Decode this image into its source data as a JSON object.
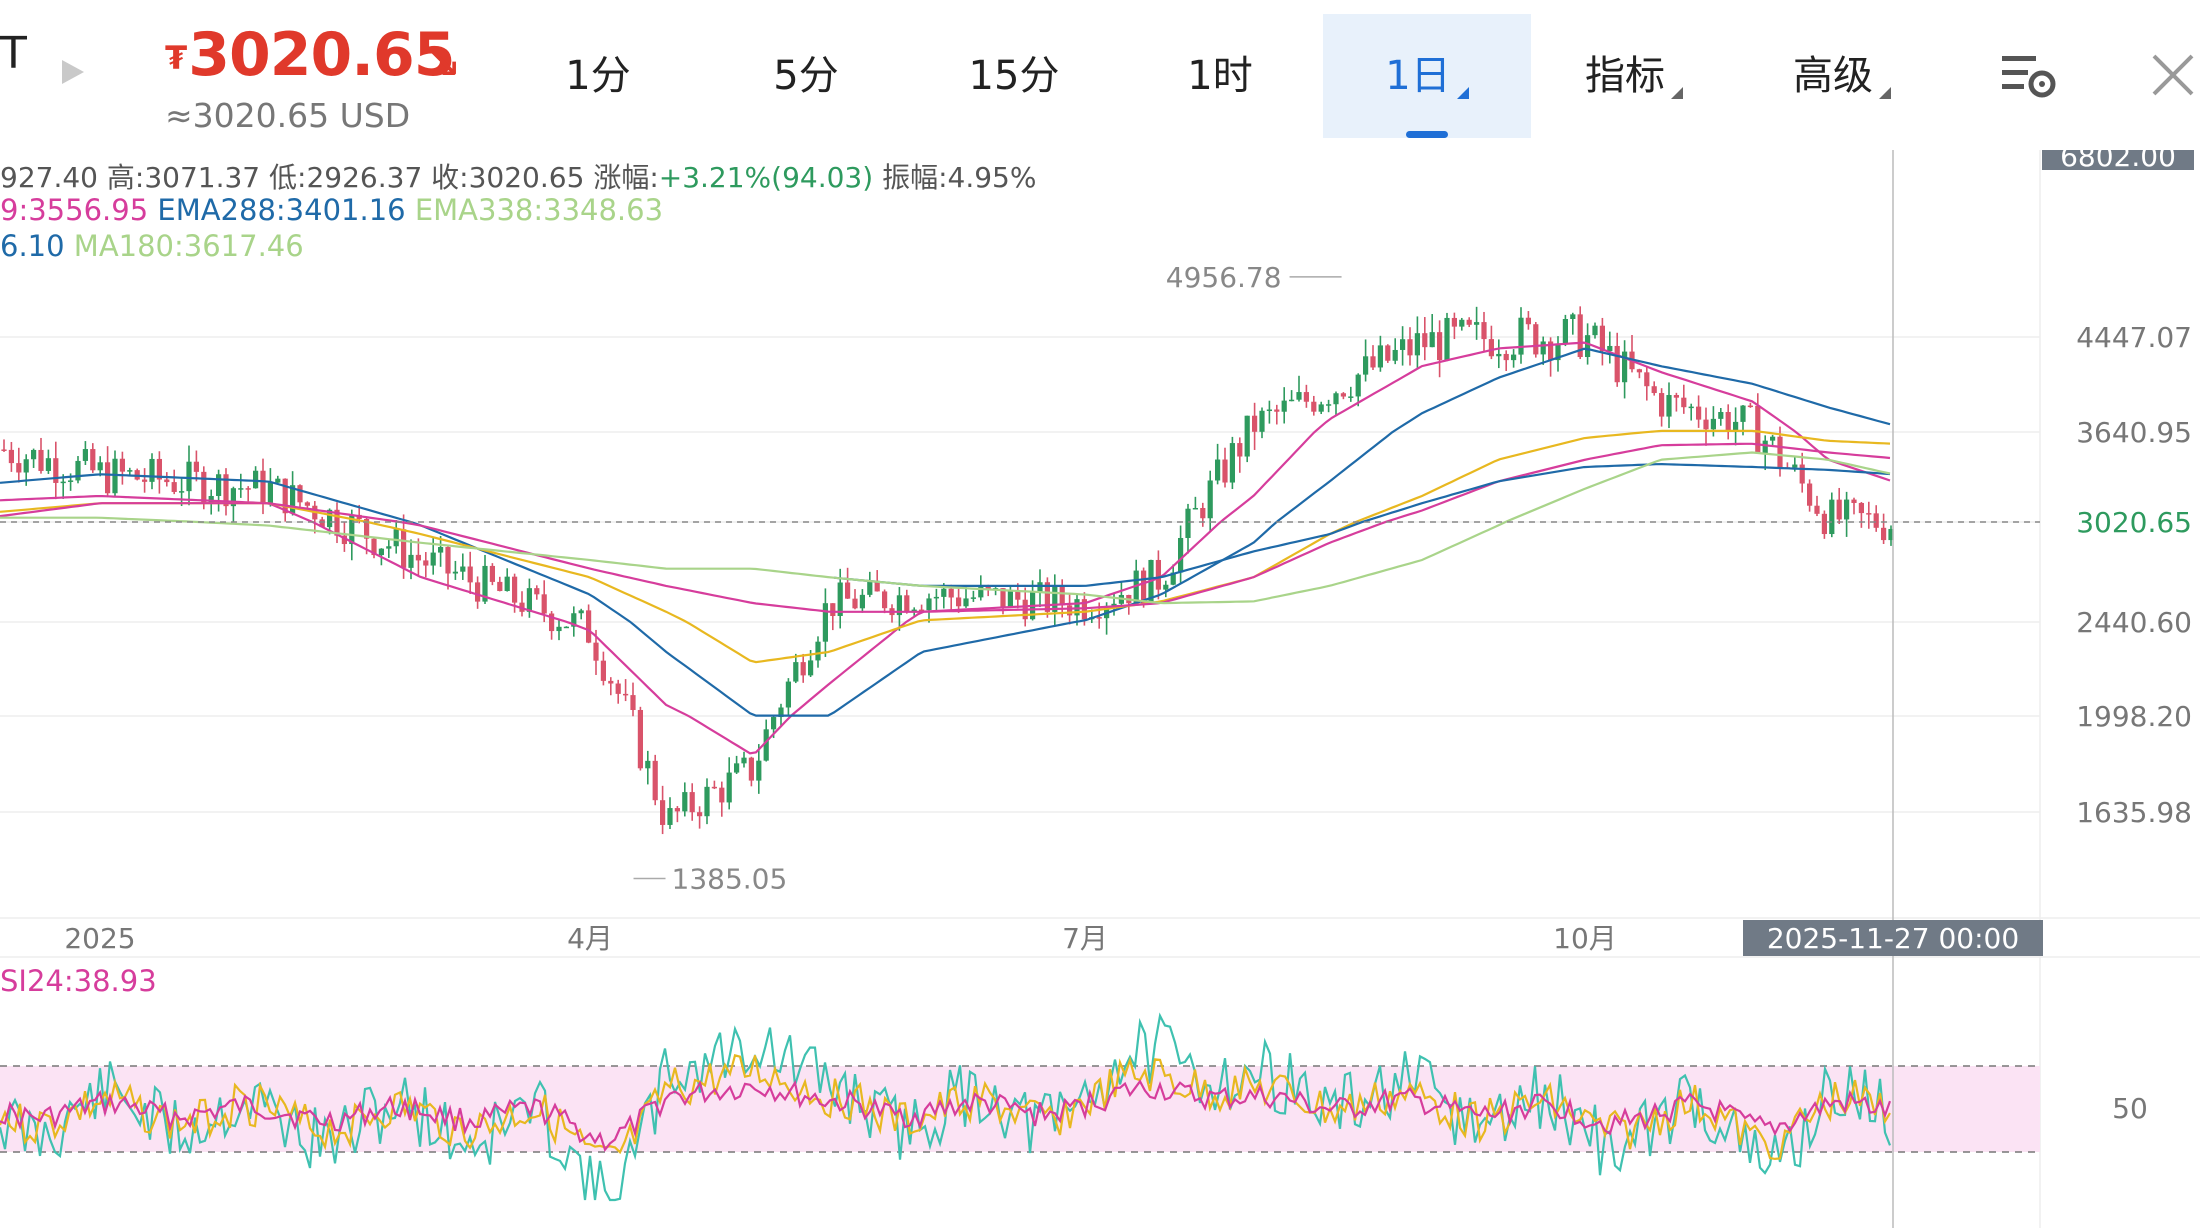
{
  "header": {
    "symbol_fragment": "T",
    "currency_symbol": "₮",
    "price": "3020.65",
    "price_arrow": "↘",
    "usd_equiv": "≈3020.65 USD",
    "tabs": [
      {
        "label": "1分",
        "active": false,
        "dropdown": false
      },
      {
        "label": "5分",
        "active": false,
        "dropdown": false
      },
      {
        "label": "15分",
        "active": false,
        "dropdown": false
      },
      {
        "label": "1时",
        "active": false,
        "dropdown": false
      },
      {
        "label": "1日",
        "active": true,
        "dropdown": true
      },
      {
        "label": "指标",
        "active": false,
        "dropdown": true
      },
      {
        "label": "高级",
        "active": false,
        "dropdown": true
      }
    ],
    "settings_icon": "chart-settings-icon",
    "close_icon": "close-icon"
  },
  "ohlc": {
    "open_label": "927.40",
    "high_label": "高:",
    "high": "3071.37",
    "low_label": "低:",
    "low": "2926.37",
    "close_label": "收:",
    "close": "3020.65",
    "change_label": "涨幅:",
    "change": "+3.21%(94.03)",
    "amp_label": "振幅:",
    "amp": "4.95%"
  },
  "indicators": {
    "line1": [
      {
        "text": "9:3556.95",
        "color": "#d63d9c"
      },
      {
        "text": "EMA288:3401.16",
        "color": "#1f6aa8"
      },
      {
        "text": "EMA338:3348.63",
        "color": "#a9d48a"
      }
    ],
    "line2": [
      {
        "text": "6.10",
        "color": "#1f6aa8"
      },
      {
        "text": "MA180:3617.46",
        "color": "#a9d48a"
      }
    ],
    "rsi_label": "SI24:38.93"
  },
  "colors": {
    "up": "#2e9a5e",
    "down": "#d9536a",
    "accent": "#1f6fd6",
    "price_red": "#e0392b",
    "current_price_tag": "#2e9a5e"
  },
  "chart_data": {
    "type": "line",
    "title": "",
    "y_ticks": [
      4447.07,
      3640.95,
      3020.65,
      2440.6,
      1998.2,
      1635.98
    ],
    "y_tick_labels": [
      "4447.07",
      "3640.95",
      "3020.65",
      "2440.60",
      "1998.20",
      "1635.98"
    ],
    "y_top_label": "6802.00",
    "x_ticks": [
      "2025",
      "4月",
      "7月",
      "10月"
    ],
    "crosshair_date": "2025-11-27 00:00",
    "high_annotation": "4956.78",
    "low_annotation": "1385.05",
    "current_price": 3020.65,
    "rsi_ticks": [
      "50"
    ],
    "x_dates": [
      "2024-12-01",
      "2025-01-01",
      "2025-02-01",
      "2025-03-01",
      "2025-04-01",
      "2025-04-15",
      "2025-05-01",
      "2025-05-15",
      "2025-06-01",
      "2025-07-01",
      "2025-07-15",
      "2025-08-01",
      "2025-08-15",
      "2025-09-01",
      "2025-09-15",
      "2025-10-01",
      "2025-10-15",
      "2025-11-01",
      "2025-11-15",
      "2025-11-27"
    ],
    "series": [
      {
        "values": [
          3650,
          3350,
          3250,
          2800,
          2400,
          1600,
          1800,
          2550,
          2600,
          2550,
          2700,
          3700,
          4000,
          4400,
          4450,
          4450,
          3900,
          3700,
          3050,
          3020
        ],
        "color": "#999999"
      },
      {
        "values": [
          3150,
          3200,
          3150,
          2700,
          2400,
          2050,
          1850,
          2150,
          2500,
          2550,
          2700,
          3200,
          3750,
          4200,
          4350,
          4400,
          4150,
          3900,
          3450,
          3300
        ],
        "color": "#d63d9c"
      },
      {
        "values": [
          3250,
          3350,
          3300,
          3000,
          2600,
          2300,
          2000,
          2000,
          2300,
          2450,
          2600,
          2900,
          3300,
          3800,
          4100,
          4350,
          4200,
          4050,
          3850,
          3700
        ],
        "color": "#1f6aa8"
      },
      {
        "values": [
          3050,
          3150,
          3150,
          2950,
          2700,
          2500,
          2250,
          2300,
          2450,
          2500,
          2560,
          2700,
          2950,
          3200,
          3450,
          3600,
          3650,
          3650,
          3580,
          3560
        ],
        "color": "#e8b820"
      },
      {
        "values": [
          3000,
          3150,
          3150,
          3000,
          2750,
          2650,
          2550,
          2500,
          2500,
          2520,
          2550,
          2700,
          2900,
          3100,
          3300,
          3450,
          3550,
          3560,
          3500,
          3460
        ],
        "color": "#d63d9c"
      },
      {
        "values": [
          null,
          null,
          null,
          null,
          null,
          null,
          null,
          2700,
          2650,
          2650,
          2700,
          2850,
          2950,
          3150,
          3300,
          3400,
          3420,
          3400,
          3380,
          3350
        ],
        "color": "#1f6aa8"
      },
      {
        "values": [
          3050,
          3050,
          3000,
          2900,
          2800,
          2750,
          2750,
          2700,
          2650,
          2600,
          2550,
          2560,
          2650,
          2800,
          3000,
          3250,
          3450,
          3500,
          3450,
          3350
        ],
        "color": "#a9d48a"
      }
    ]
  }
}
